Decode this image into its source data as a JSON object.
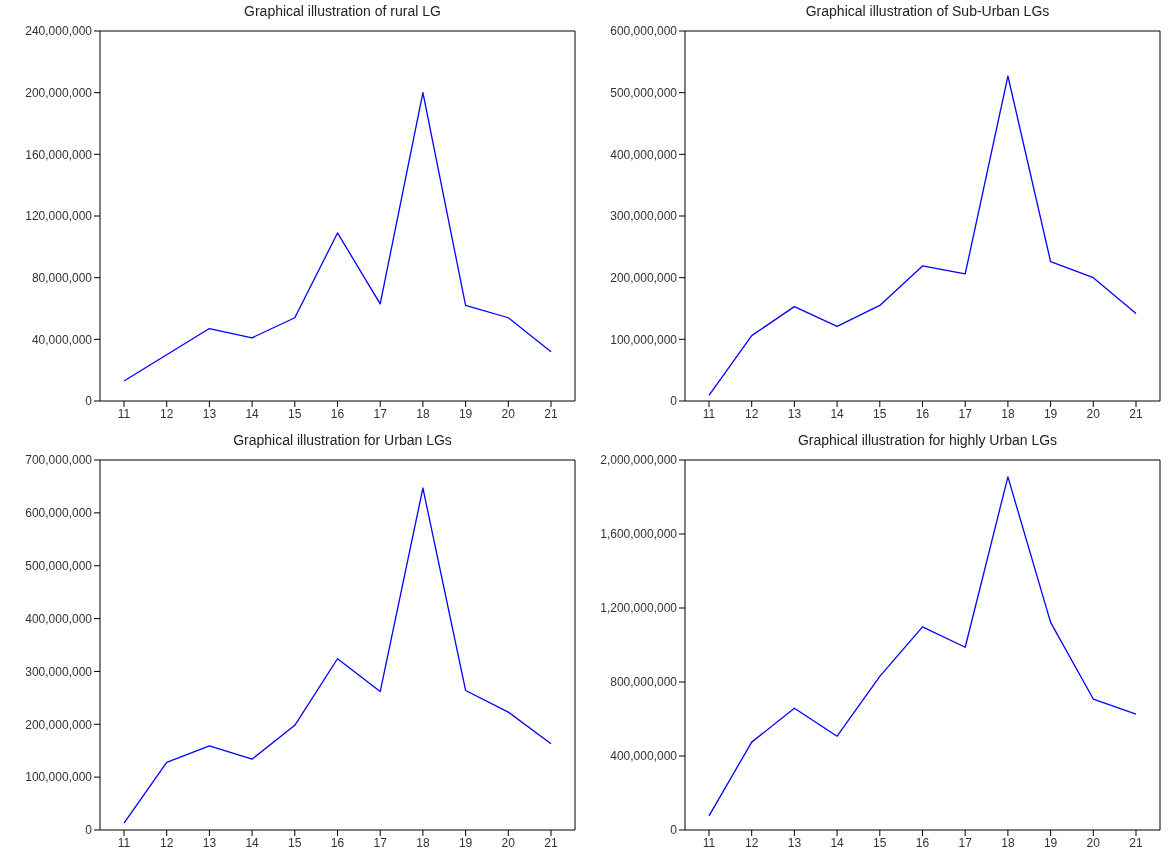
{
  "chart_data": [
    {
      "type": "line",
      "title": "Graphical illustration of rural LG",
      "categories": [
        "11",
        "12",
        "13",
        "14",
        "15",
        "16",
        "17",
        "18",
        "19",
        "20",
        "21"
      ],
      "values": [
        13000000,
        30000000,
        47000000,
        41000000,
        54000000,
        109000000,
        63000000,
        200000000,
        62000000,
        54000000,
        32000000
      ],
      "color": "#0000ff",
      "marker": "none",
      "ylim": [
        0,
        240000000
      ],
      "yticks": [
        {
          "value": 0,
          "label": "0"
        },
        {
          "value": 40000000,
          "label": "40,000,000"
        },
        {
          "value": 80000000,
          "label": "80,000,000"
        },
        {
          "value": 120000000,
          "label": "120,000,000"
        },
        {
          "value": 160000000,
          "label": "160,000,000"
        },
        {
          "value": 200000000,
          "label": "200,000,000"
        },
        {
          "value": 240000000,
          "label": "240,000,000"
        }
      ]
    },
    {
      "type": "line",
      "title": "Graphical illustration of Sub-Urban LGs",
      "categories": [
        "11",
        "12",
        "13",
        "14",
        "15",
        "16",
        "17",
        "18",
        "19",
        "20",
        "21"
      ],
      "values": [
        9000000,
        106000000,
        153000000,
        121000000,
        155000000,
        219000000,
        206000000,
        527000000,
        226000000,
        200000000,
        142000000
      ],
      "color": "#0000ff",
      "marker": "none",
      "ylim": [
        0,
        600000000
      ],
      "yticks": [
        {
          "value": 0,
          "label": "0"
        },
        {
          "value": 100000000,
          "label": "100,000,000"
        },
        {
          "value": 200000000,
          "label": "200,000,000"
        },
        {
          "value": 300000000,
          "label": "300,000,000"
        },
        {
          "value": 400000000,
          "label": "400,000,000"
        },
        {
          "value": 500000000,
          "label": "500,000,000"
        },
        {
          "value": 600000000,
          "label": "600,000,000"
        }
      ]
    },
    {
      "type": "line",
      "title": "Graphical illustration for Urban LGs",
      "categories": [
        "11",
        "12",
        "13",
        "14",
        "15",
        "16",
        "17",
        "18",
        "19",
        "20",
        "21"
      ],
      "values": [
        13000000,
        128000000,
        159000000,
        134000000,
        198000000,
        324000000,
        262000000,
        647000000,
        264000000,
        223000000,
        163000000
      ],
      "color": "#0000ff",
      "marker": "none",
      "ylim": [
        0,
        700000000
      ],
      "yticks": [
        {
          "value": 0,
          "label": "0"
        },
        {
          "value": 100000000,
          "label": "100,000,000"
        },
        {
          "value": 200000000,
          "label": "200,000,000"
        },
        {
          "value": 300000000,
          "label": "300,000,000"
        },
        {
          "value": 400000000,
          "label": "400,000,000"
        },
        {
          "value": 500000000,
          "label": "500,000,000"
        },
        {
          "value": 600000000,
          "label": "600,000,000"
        },
        {
          "value": 700000000,
          "label": "700,000,000"
        }
      ]
    },
    {
      "type": "line",
      "title": "Graphical illustration for highly Urban LGs",
      "categories": [
        "11",
        "12",
        "13",
        "14",
        "15",
        "16",
        "17",
        "18",
        "19",
        "20",
        "21"
      ],
      "values": [
        76000000,
        475000000,
        658000000,
        507000000,
        830000000,
        1098000000,
        988000000,
        1909000000,
        1122000000,
        708000000,
        626000000
      ],
      "color": "#0000ff",
      "marker": "none",
      "ylim": [
        0,
        2000000000
      ],
      "yticks": [
        {
          "value": 0,
          "label": "0"
        },
        {
          "value": 400000000,
          "label": "400,000,000"
        },
        {
          "value": 800000000,
          "label": "800,000,000"
        },
        {
          "value": 1200000000,
          "label": "1,200,000,000"
        },
        {
          "value": 1600000000,
          "label": "1,600,000,000"
        },
        {
          "value": 2000000000,
          "label": "2,000,000,000"
        }
      ]
    }
  ]
}
